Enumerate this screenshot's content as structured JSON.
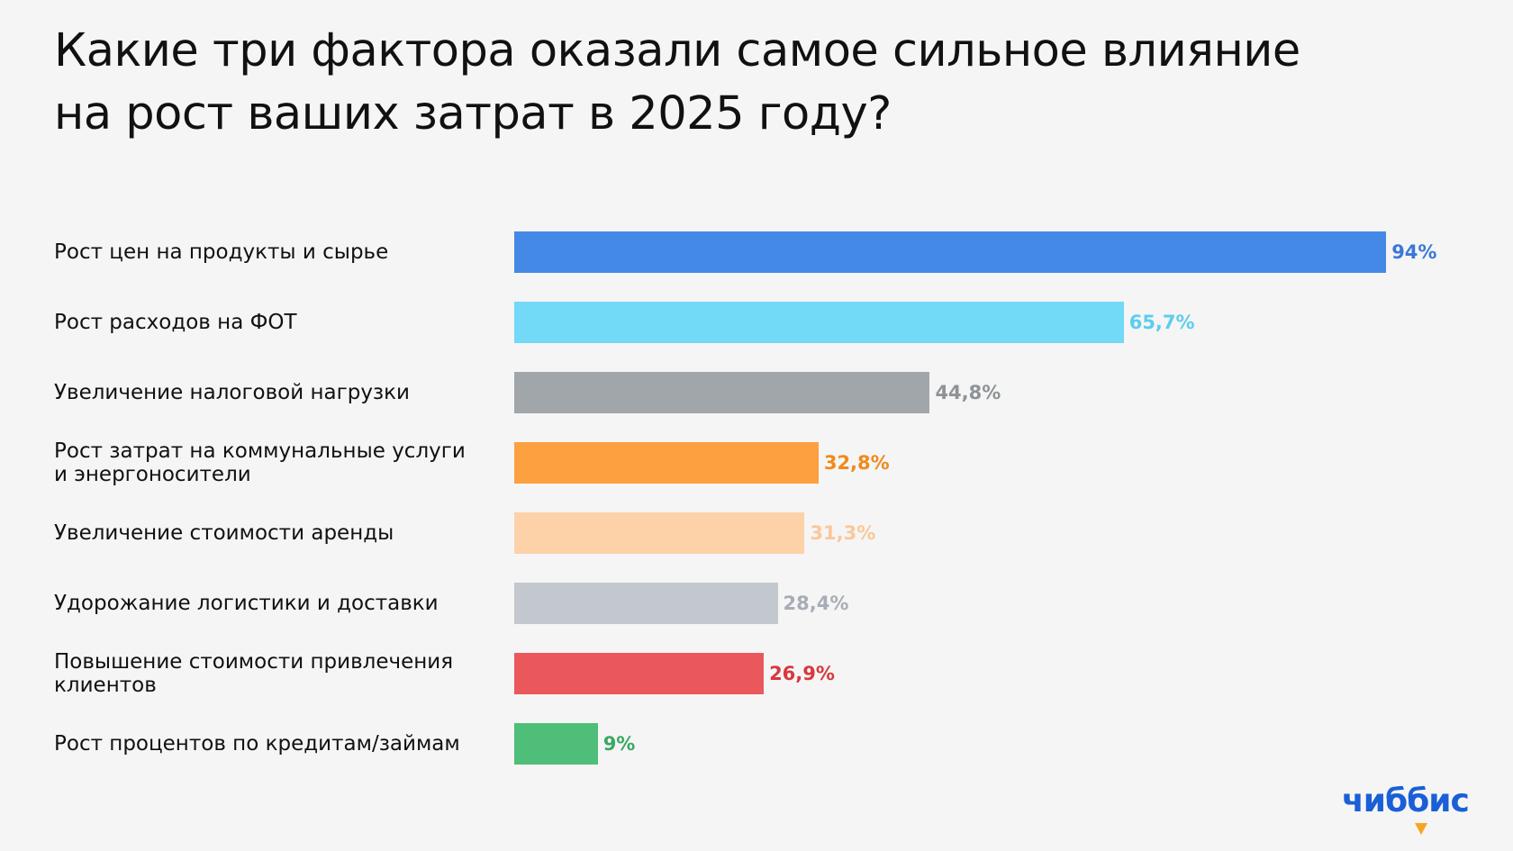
{
  "title": "Какие три фактора оказали самое сильное влияние\nна рост ваших затрат в 2025 году?",
  "logo": {
    "text": "чиббис",
    "color": "#1a5fd6",
    "mark_color": "#f5a623"
  },
  "chart_data": {
    "type": "bar",
    "orientation": "horizontal",
    "title": "Какие три фактора оказали самое сильное влияние\nна рост ваших затрат в 2025 году?",
    "xlim": [
      0,
      100
    ],
    "grid": false,
    "legend": "none",
    "categories": [
      "Рост цен на продукты и сырье",
      "Рост расходов на ФОТ",
      "Увеличение налоговой нагрузки",
      "Рост затрат на коммунальные услуги\nи энергоносители",
      "Увеличение стоимости аренды",
      "Удорожание логистики и доставки",
      "Повышение стоимости привлечения\nклиентов",
      "Рост процентов по кредитам/займам"
    ],
    "values": [
      94,
      65.7,
      44.8,
      32.8,
      31.3,
      28.4,
      26.9,
      9
    ],
    "value_labels": [
      "94%",
      "65,7%",
      "44,8%",
      "32,8%",
      "31,3%",
      "28,4%",
      "26,9%",
      "9%"
    ],
    "bar_colors": [
      "#4589e6",
      "#72d9f7",
      "#a1a6ab",
      "#fca040",
      "#fdd2a8",
      "#c3c7ce",
      "#eb585c",
      "#4fbe78"
    ],
    "label_colors": [
      "#3a78d8",
      "#5dcdee",
      "#8e9398",
      "#f08a1c",
      "#fbc79a",
      "#a8adb5",
      "#d8383d",
      "#3aa863"
    ]
  }
}
